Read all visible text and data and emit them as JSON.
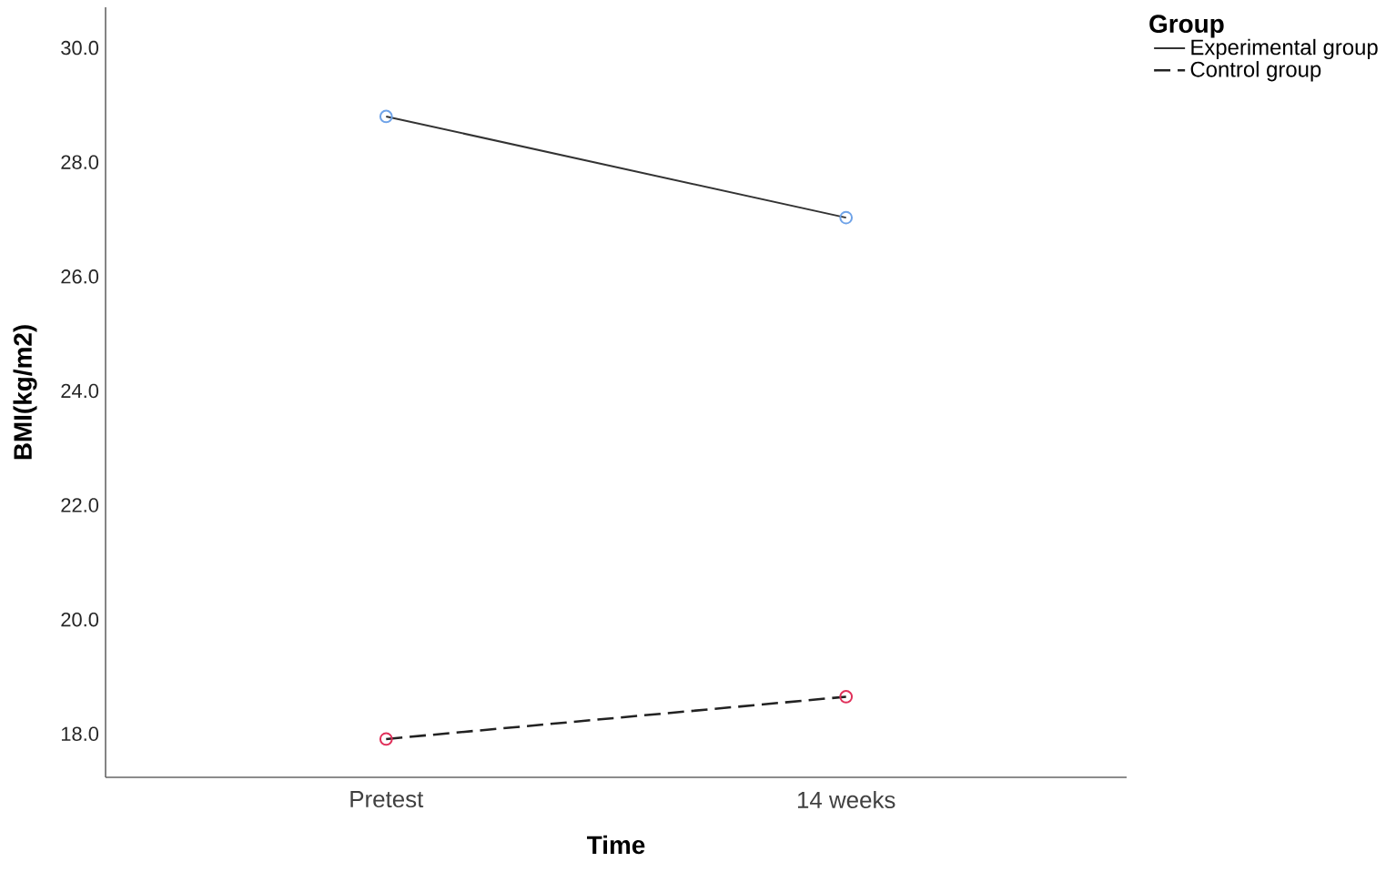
{
  "chart_data": {
    "type": "line",
    "xlabel": "Time",
    "ylabel": "BMI(kg/m2)",
    "legend_title": "Group",
    "legend": "top right",
    "marker": "circle",
    "grid": false,
    "categories": [
      "Pretest",
      "14 weeks"
    ],
    "ylim": [
      17.24,
      30.71
    ],
    "yticks": [
      {
        "value": 18,
        "label": "18.0"
      },
      {
        "value": 20,
        "label": "20.0"
      },
      {
        "value": 22,
        "label": "22.0"
      },
      {
        "value": 24,
        "label": "24.0"
      },
      {
        "value": 26,
        "label": "26.0"
      },
      {
        "value": 28,
        "label": "28.0"
      },
      {
        "value": 30,
        "label": "30.0"
      }
    ],
    "series": [
      {
        "name": "Experimental group",
        "color": "#333333",
        "colors": [
          "#6fa3e8",
          "#6fa3e8"
        ],
        "line_style": "solid",
        "values": [
          28.8,
          27.03
        ]
      },
      {
        "name": "Control group",
        "color": "#222222",
        "colors": [
          "#e0305a",
          "#e0305a"
        ],
        "line_style": "dashed",
        "values": [
          17.91,
          18.65
        ]
      }
    ]
  }
}
